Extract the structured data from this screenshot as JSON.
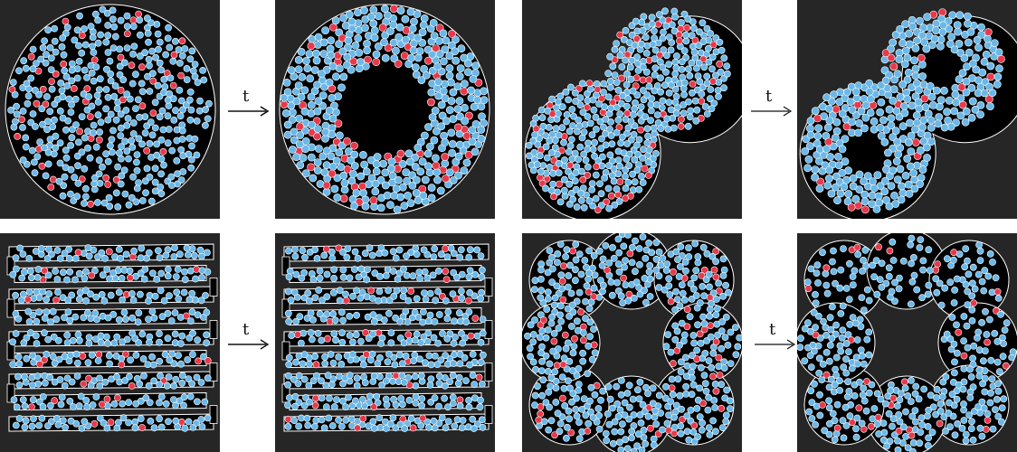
{
  "figure": {
    "time_label": "t",
    "particle_colors": {
      "common": "#6bb8e8",
      "tagged": "#e8394d",
      "boundary": "#ffffff",
      "background": "#262626",
      "inside": "#000000"
    },
    "rows": [
      {
        "pairs": [
          {
            "geometry": "single-circle",
            "before": "initial-mixed",
            "after": "hollow-center"
          },
          {
            "geometry": "two-overlapping-circles",
            "before": "initial-mixed",
            "after": "two-voids"
          }
        ]
      },
      {
        "pairs": [
          {
            "geometry": "zigzag-channel",
            "before": "initial-mixed",
            "after": "packed-bottom-channel"
          },
          {
            "geometry": "ring-of-eight-circles",
            "before": "initial-mixed",
            "after": "packed-bottom-left"
          }
        ]
      }
    ]
  }
}
